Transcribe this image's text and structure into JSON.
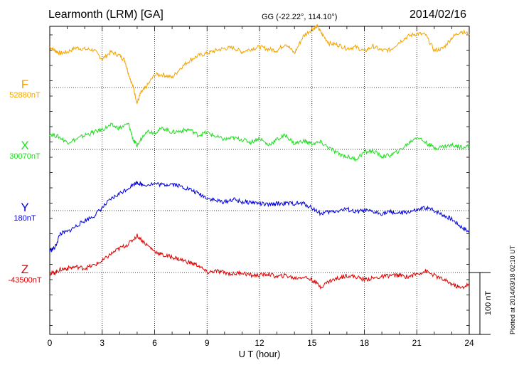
{
  "header": {
    "title": "Learmonth (LRM)  [GA]",
    "coords": "GG (-22.22°, 114.10°)",
    "date": "2014/02/16"
  },
  "credit": "Plotted at 2014/03/18 02:10 UT",
  "chart_data": {
    "type": "line",
    "xlabel": "U T (hour)",
    "xlim": [
      0,
      24
    ],
    "xticks": [
      0,
      3,
      6,
      9,
      12,
      15,
      18,
      21,
      24
    ],
    "scale_label": "100 nT",
    "scale_nT": 100,
    "grid": true,
    "series": [
      {
        "name": "F",
        "baseline_label": "52880nT",
        "color": "#f4a400",
        "baseline_nT": 52880,
        "points": [
          [
            0,
            57
          ],
          [
            0.3,
            52
          ],
          [
            0.6,
            48
          ],
          [
            1,
            50
          ],
          [
            1.5,
            56
          ],
          [
            2,
            54
          ],
          [
            2.5,
            53
          ],
          [
            3,
            40
          ],
          [
            3.5,
            50
          ],
          [
            4,
            45
          ],
          [
            4.3,
            38
          ],
          [
            4.5,
            20
          ],
          [
            4.8,
            -2
          ],
          [
            5,
            -22
          ],
          [
            5.2,
            -8
          ],
          [
            5.5,
            0
          ],
          [
            6,
            18
          ],
          [
            6.5,
            18
          ],
          [
            7,
            14
          ],
          [
            7.5,
            28
          ],
          [
            8,
            38
          ],
          [
            8.5,
            45
          ],
          [
            9,
            48
          ],
          [
            9.5,
            52
          ],
          [
            10,
            55
          ],
          [
            10.5,
            56
          ],
          [
            11,
            50
          ],
          [
            11.5,
            54
          ],
          [
            12,
            57
          ],
          [
            12.5,
            54
          ],
          [
            13,
            52
          ],
          [
            13.5,
            62
          ],
          [
            14,
            48
          ],
          [
            14.5,
            72
          ],
          [
            15,
            82
          ],
          [
            15.3,
            86
          ],
          [
            15.6,
            74
          ],
          [
            16,
            62
          ],
          [
            16.5,
            60
          ],
          [
            17,
            55
          ],
          [
            17.5,
            57
          ],
          [
            18,
            51
          ],
          [
            18.5,
            58
          ],
          [
            19,
            52
          ],
          [
            19.5,
            53
          ],
          [
            20,
            64
          ],
          [
            20.5,
            72
          ],
          [
            21,
            76
          ],
          [
            21.5,
            74
          ],
          [
            22,
            52
          ],
          [
            22.5,
            55
          ],
          [
            23,
            70
          ],
          [
            23.5,
            79
          ],
          [
            24,
            75
          ]
        ]
      },
      {
        "name": "X",
        "baseline_label": "30070nT",
        "color": "#22dd22",
        "baseline_nT": 30070,
        "points": [
          [
            0,
            22
          ],
          [
            0.5,
            18
          ],
          [
            1,
            10
          ],
          [
            1.5,
            14
          ],
          [
            2,
            20
          ],
          [
            2.5,
            24
          ],
          [
            3,
            28
          ],
          [
            3.5,
            34
          ],
          [
            4,
            30
          ],
          [
            4.5,
            36
          ],
          [
            4.8,
            12
          ],
          [
            5,
            5
          ],
          [
            5.5,
            26
          ],
          [
            6,
            24
          ],
          [
            6.5,
            30
          ],
          [
            7,
            24
          ],
          [
            7.5,
            26
          ],
          [
            8,
            28
          ],
          [
            8.5,
            20
          ],
          [
            9,
            24
          ],
          [
            9.5,
            18
          ],
          [
            10,
            14
          ],
          [
            10.5,
            16
          ],
          [
            11,
            14
          ],
          [
            11.5,
            10
          ],
          [
            12,
            16
          ],
          [
            12.5,
            6
          ],
          [
            13,
            14
          ],
          [
            13.5,
            20
          ],
          [
            14,
            8
          ],
          [
            14.5,
            12
          ],
          [
            15,
            8
          ],
          [
            15.5,
            10
          ],
          [
            16,
            2
          ],
          [
            16.5,
            -6
          ],
          [
            17,
            -10
          ],
          [
            17.5,
            -14
          ],
          [
            18,
            -4
          ],
          [
            18.5,
            -2
          ],
          [
            19,
            -10
          ],
          [
            19.5,
            -8
          ],
          [
            20,
            -2
          ],
          [
            20.5,
            8
          ],
          [
            21,
            18
          ],
          [
            21.5,
            10
          ],
          [
            22,
            2
          ],
          [
            22.5,
            4
          ],
          [
            23,
            6
          ],
          [
            23.5,
            4
          ],
          [
            24,
            4
          ]
        ]
      },
      {
        "name": "Y",
        "baseline_label": "180nT",
        "color": "#0000dd",
        "baseline_nT": 180,
        "points": [
          [
            0,
            -56
          ],
          [
            0.3,
            -52
          ],
          [
            0.6,
            -32
          ],
          [
            1,
            -30
          ],
          [
            1.5,
            -22
          ],
          [
            2,
            -14
          ],
          [
            2.5,
            -8
          ],
          [
            3,
            4
          ],
          [
            3.5,
            16
          ],
          [
            4,
            24
          ],
          [
            4.5,
            32
          ],
          [
            5,
            40
          ],
          [
            5.3,
            36
          ],
          [
            6,
            38
          ],
          [
            6.5,
            36
          ],
          [
            7,
            38
          ],
          [
            7.5,
            34
          ],
          [
            8,
            30
          ],
          [
            8.5,
            24
          ],
          [
            9,
            18
          ],
          [
            9.5,
            14
          ],
          [
            10,
            12
          ],
          [
            10.5,
            16
          ],
          [
            11,
            12
          ],
          [
            11.5,
            12
          ],
          [
            12,
            10
          ],
          [
            12.5,
            8
          ],
          [
            13,
            10
          ],
          [
            13.5,
            10
          ],
          [
            14,
            10
          ],
          [
            14.5,
            10
          ],
          [
            15,
            4
          ],
          [
            15.5,
            -4
          ],
          [
            16,
            -2
          ],
          [
            16.5,
            0
          ],
          [
            17,
            2
          ],
          [
            17.5,
            -2
          ],
          [
            18,
            0
          ],
          [
            18.5,
            -2
          ],
          [
            19,
            -4
          ],
          [
            19.5,
            -2
          ],
          [
            20,
            -4
          ],
          [
            20.5,
            -2
          ],
          [
            21,
            0
          ],
          [
            21.5,
            4
          ],
          [
            22,
            0
          ],
          [
            22.5,
            -6
          ],
          [
            23,
            -12
          ],
          [
            23.5,
            -22
          ],
          [
            24,
            -30
          ]
        ]
      },
      {
        "name": "Z",
        "baseline_label": "-43500nT",
        "color": "#dd0000",
        "baseline_nT": -43500,
        "points": [
          [
            0,
            -2
          ],
          [
            0.3,
            0
          ],
          [
            0.6,
            4
          ],
          [
            1,
            6
          ],
          [
            1.5,
            8
          ],
          [
            2,
            6
          ],
          [
            2.5,
            10
          ],
          [
            3,
            16
          ],
          [
            3.5,
            26
          ],
          [
            4,
            34
          ],
          [
            4.5,
            40
          ],
          [
            5,
            52
          ],
          [
            5.5,
            40
          ],
          [
            6,
            30
          ],
          [
            6.5,
            24
          ],
          [
            7,
            22
          ],
          [
            7.5,
            18
          ],
          [
            8,
            14
          ],
          [
            8.5,
            10
          ],
          [
            9,
            0
          ],
          [
            9.5,
            2
          ],
          [
            10,
            0
          ],
          [
            10.5,
            -2
          ],
          [
            11,
            0
          ],
          [
            11.5,
            -4
          ],
          [
            12,
            -4
          ],
          [
            12.5,
            -2
          ],
          [
            13,
            -6
          ],
          [
            13.5,
            -4
          ],
          [
            14,
            -8
          ],
          [
            14.5,
            -6
          ],
          [
            15,
            -10
          ],
          [
            15.5,
            -20
          ],
          [
            16,
            -12
          ],
          [
            16.5,
            -8
          ],
          [
            17,
            -4
          ],
          [
            17.5,
            -6
          ],
          [
            18,
            -10
          ],
          [
            18.5,
            -8
          ],
          [
            19,
            -6
          ],
          [
            19.5,
            -4
          ],
          [
            20,
            -4
          ],
          [
            20.5,
            -6
          ],
          [
            21,
            -2
          ],
          [
            21.5,
            2
          ],
          [
            22,
            -4
          ],
          [
            22.5,
            -10
          ],
          [
            23,
            -16
          ],
          [
            23.5,
            -22
          ],
          [
            24,
            -16
          ]
        ]
      }
    ]
  }
}
